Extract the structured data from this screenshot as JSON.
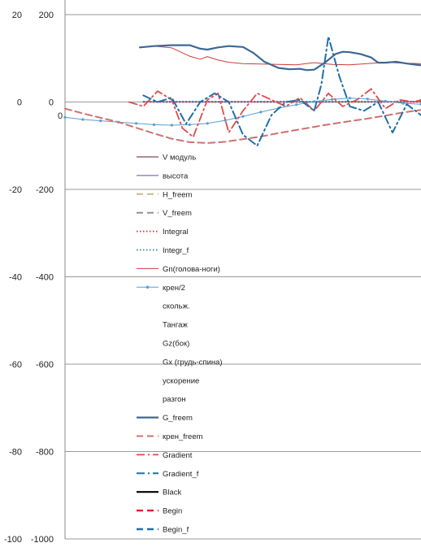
{
  "chart_data": {
    "type": "line",
    "title": "",
    "xlabel": "",
    "ylabel": "",
    "grid": "horizontal",
    "legend_position": "inside-left",
    "axes": {
      "left_outer": {
        "ticks": [
          "20",
          "0",
          "-20",
          "-40",
          "-60",
          "-80",
          "-100"
        ],
        "ylim": [
          -100,
          20
        ]
      },
      "left_inner": {
        "ticks": [
          "200",
          "0",
          "-200",
          "-400",
          "-600",
          "-800",
          "-1000"
        ],
        "ylim": [
          -1000,
          200
        ]
      },
      "x_label_origin": "0",
      "xlim": [
        0,
        100
      ]
    },
    "series": [
      {
        "name": "V модуль",
        "axis": "inner",
        "style": "solid",
        "color": "#5a1e2e",
        "x": [],
        "y": []
      },
      {
        "name": "высота",
        "axis": "inner",
        "style": "solid",
        "color": "#6a4a9a",
        "x": [],
        "y": []
      },
      {
        "name": "H_freem",
        "axis": "inner",
        "style": "dashed",
        "color": "#c9b98a",
        "x": [],
        "y": []
      },
      {
        "name": "V_freem",
        "axis": "inner",
        "style": "dashed",
        "color": "#9a8aa8",
        "x": [],
        "y": []
      },
      {
        "name": "Integral",
        "axis": "inner",
        "style": "dotted",
        "color": "#d03030",
        "x": [
          22,
          30,
          40,
          50,
          60,
          70,
          80,
          90,
          100
        ],
        "y": [
          0,
          0,
          0,
          0,
          0,
          0,
          0,
          0,
          0
        ]
      },
      {
        "name": "Integr_f",
        "axis": "inner",
        "style": "dotted",
        "color": "#2f7f9f",
        "x": [
          22,
          30,
          40,
          50,
          60,
          70,
          80,
          90,
          100
        ],
        "y": [
          1,
          1,
          1,
          1,
          1,
          1,
          1,
          1,
          1
        ]
      },
      {
        "name": "Gn(голова-ноги)",
        "axis": "inner",
        "style": "solid",
        "color": "#d13a3a",
        "x": [
          21,
          25,
          30,
          35,
          38,
          40,
          43,
          46,
          50,
          55,
          60,
          65,
          70,
          75,
          80,
          85,
          90,
          95,
          100
        ],
        "y": [
          125,
          128,
          124,
          105,
          98,
          104,
          96,
          91,
          88,
          87,
          86,
          85,
          90,
          86,
          85,
          88,
          91,
          89,
          88
        ]
      },
      {
        "name": "крен/2",
        "axis": "outer",
        "style": "marker-line",
        "color": "#5c9ecf",
        "x": [
          0,
          5,
          10,
          15,
          20,
          25,
          30,
          35,
          40,
          45,
          50,
          55,
          60,
          65,
          70,
          75,
          80,
          85,
          90,
          95,
          100
        ],
        "y": [
          -3.5,
          -4,
          -4.3,
          -4.6,
          -4.9,
          -5.2,
          -5.3,
          -5.2,
          -4.9,
          -4.2,
          -3.3,
          -2.3,
          -1.4,
          -0.6,
          0.1,
          0.6,
          0.9,
          0.7,
          0.2,
          -0.3,
          -0.5
        ]
      },
      {
        "name": "скольж.",
        "axis": "inner",
        "style": "none",
        "color": "#ffffff",
        "x": [],
        "y": []
      },
      {
        "name": "Тангаж",
        "axis": "inner",
        "style": "none",
        "color": "#ffffff",
        "x": [],
        "y": []
      },
      {
        "name": "Gz(бок)",
        "axis": "inner",
        "style": "none",
        "color": "#ffffff",
        "x": [],
        "y": []
      },
      {
        "name": "Gx (грудь-спина)",
        "axis": "inner",
        "style": "none",
        "color": "#ffffff",
        "x": [],
        "y": []
      },
      {
        "name": "ускорение",
        "axis": "inner",
        "style": "none",
        "color": "#ffffff",
        "x": [],
        "y": []
      },
      {
        "name": "разгон",
        "axis": "inner",
        "style": "none",
        "color": "#ffffff",
        "x": [],
        "y": []
      },
      {
        "name": "G_freem",
        "axis": "inner",
        "style": "solid-thick",
        "color": "#3d6894",
        "x": [
          21,
          25,
          30,
          35,
          38,
          40,
          43,
          46,
          50,
          53,
          56,
          60,
          63,
          66,
          68,
          70,
          73,
          76,
          78,
          80,
          83,
          86,
          88,
          90,
          93,
          96,
          100
        ],
        "y": [
          125,
          128,
          130,
          130,
          122,
          120,
          125,
          128,
          126,
          112,
          92,
          78,
          75,
          76,
          73,
          74,
          90,
          110,
          115,
          114,
          110,
          102,
          90,
          90,
          92,
          88,
          84
        ]
      },
      {
        "name": "крен_freem",
        "axis": "outer",
        "style": "dashed",
        "color": "#d07070",
        "x": [
          0,
          5,
          10,
          15,
          20,
          25,
          30,
          35,
          40,
          45,
          50,
          55,
          60,
          65,
          70,
          75,
          80,
          85,
          90,
          95,
          100
        ],
        "y": [
          -1.5,
          -2.6,
          -3.6,
          -4.6,
          -5.9,
          -7.2,
          -8.4,
          -9.2,
          -9.4,
          -9.1,
          -8.5,
          -7.9,
          -7.1,
          -6.4,
          -5.7,
          -5.0,
          -4.4,
          -3.8,
          -3.1,
          -2.4,
          -1.8
        ]
      },
      {
        "name": "Gradient",
        "axis": "inner",
        "style": "dash-dot",
        "color": "#e04a4a",
        "x": [
          18,
          22,
          26,
          30,
          33,
          36,
          40,
          43,
          46,
          50,
          54,
          58,
          62,
          66,
          70,
          74,
          78,
          82,
          86,
          90,
          94,
          98,
          100
        ],
        "y": [
          0,
          -10,
          25,
          5,
          -60,
          -80,
          5,
          20,
          -70,
          -20,
          20,
          5,
          -10,
          10,
          -20,
          20,
          -10,
          5,
          30,
          -15,
          5,
          0,
          5
        ]
      },
      {
        "name": "Gradient_f",
        "axis": "inner",
        "style": "dash-dot-thick",
        "color": "#1f6fa8",
        "x": [
          22,
          26,
          30,
          34,
          38,
          42,
          46,
          50,
          54,
          58,
          62,
          66,
          70,
          72,
          74,
          77,
          80,
          84,
          88,
          92,
          96,
          100
        ],
        "y": [
          15,
          0,
          10,
          -50,
          0,
          20,
          0,
          -75,
          -100,
          -30,
          0,
          5,
          -20,
          40,
          150,
          60,
          -10,
          -20,
          0,
          -70,
          -5,
          -30
        ]
      },
      {
        "name": "Black",
        "axis": "inner",
        "style": "solid-thick",
        "color": "#000000",
        "x": [],
        "y": []
      },
      {
        "name": "Begin",
        "axis": "inner",
        "style": "dashed-thick",
        "color": "#e02020",
        "x": [],
        "y": []
      },
      {
        "name": "Begin_f",
        "axis": "inner",
        "style": "dashed-thick",
        "color": "#1f6fa8",
        "x": [],
        "y": []
      }
    ]
  }
}
